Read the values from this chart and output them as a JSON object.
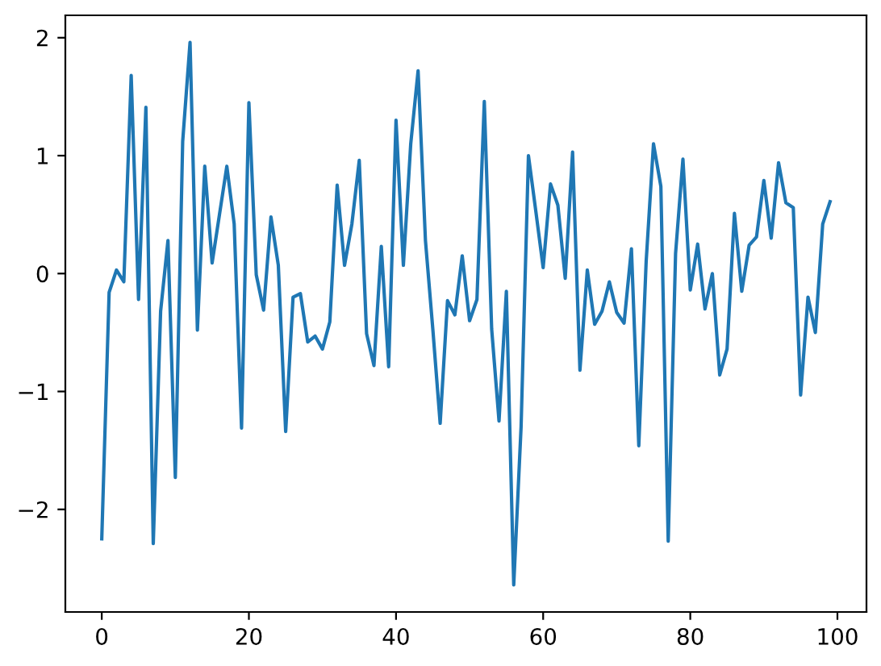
{
  "chart_data": {
    "type": "line",
    "x": [
      0,
      1,
      2,
      3,
      4,
      5,
      6,
      7,
      8,
      9,
      10,
      11,
      12,
      13,
      14,
      15,
      16,
      17,
      18,
      19,
      20,
      21,
      22,
      23,
      24,
      25,
      26,
      27,
      28,
      29,
      30,
      31,
      32,
      33,
      34,
      35,
      36,
      37,
      38,
      39,
      40,
      41,
      42,
      43,
      44,
      45,
      46,
      47,
      48,
      49,
      50,
      51,
      52,
      53,
      54,
      55,
      56,
      57,
      58,
      59,
      60,
      61,
      62,
      63,
      64,
      65,
      66,
      67,
      68,
      69,
      70,
      71,
      72,
      73,
      74,
      75,
      76,
      77,
      78,
      79,
      80,
      81,
      82,
      83,
      84,
      85,
      86,
      87,
      88,
      89,
      90,
      91,
      92,
      93,
      94,
      95,
      96,
      97,
      98,
      99
    ],
    "series": [
      {
        "color": "#1f77b4",
        "values": [
          -2.25,
          -0.16,
          0.03,
          -0.07,
          1.68,
          -0.22,
          1.41,
          -2.29,
          -0.32,
          0.28,
          -1.73,
          1.12,
          1.96,
          -0.48,
          0.91,
          0.09,
          0.5,
          0.91,
          0.42,
          -1.31,
          1.45,
          -0.01,
          -0.31,
          0.48,
          0.07,
          -1.34,
          -0.2,
          -0.17,
          -0.58,
          -0.53,
          -0.64,
          -0.41,
          0.75,
          0.07,
          0.42,
          0.96,
          -0.51,
          -0.78,
          0.23,
          -0.79,
          1.3,
          0.07,
          1.1,
          1.72,
          0.28,
          -0.47,
          -1.27,
          -0.23,
          -0.35,
          0.15,
          -0.4,
          -0.22,
          1.46,
          -0.47,
          -1.25,
          -0.15,
          -2.64,
          -1.3,
          1.0,
          0.53,
          0.05,
          0.76,
          0.58,
          -0.04,
          1.03,
          -0.82,
          0.03,
          -0.43,
          -0.32,
          -0.07,
          -0.33,
          -0.42,
          0.21,
          -1.46,
          0.1,
          1.1,
          0.74,
          -2.27,
          0.17,
          0.97,
          -0.14,
          0.25,
          -0.3,
          0.0,
          -0.86,
          -0.64,
          0.51,
          -0.15,
          0.24,
          0.31,
          0.79,
          0.3,
          0.94,
          0.6,
          0.56,
          -1.03,
          -0.2,
          -0.5,
          0.42,
          0.61
        ]
      }
    ],
    "xlim": [
      -4.95,
      103.95
    ],
    "ylim": [
      -2.87,
      2.19
    ],
    "xticks": [
      0,
      20,
      40,
      60,
      80,
      100
    ],
    "yticks": [
      {
        "value": -2,
        "label": "−2"
      },
      {
        "value": -1,
        "label": "−1"
      },
      0,
      1,
      2
    ],
    "line_style": "solid",
    "marker": "none"
  }
}
